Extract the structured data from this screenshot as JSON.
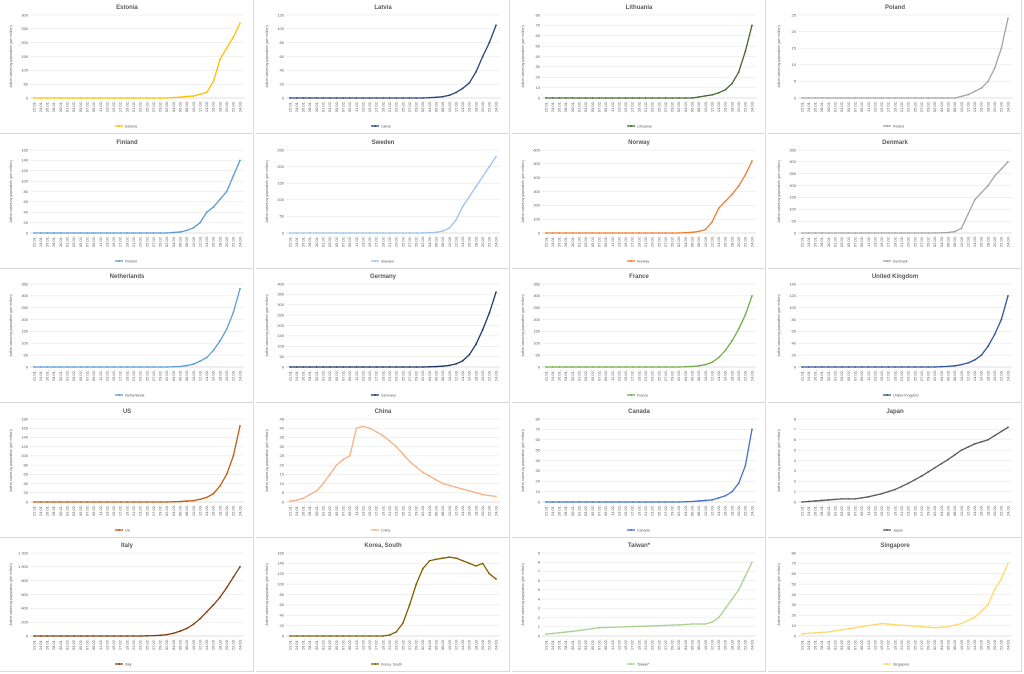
{
  "dates": [
    "22.01.",
    "24.01.",
    "26.01.",
    "28.01.",
    "30.01.",
    "01.02.",
    "03.02.",
    "05.02.",
    "07.02.",
    "09.02.",
    "11.02.",
    "13.02.",
    "15.02.",
    "17.02.",
    "19.02.",
    "21.02.",
    "23.02.",
    "25.02.",
    "27.02.",
    "29.02.",
    "02.03.",
    "04.03.",
    "06.03.",
    "08.03.",
    "10.03.",
    "12.03.",
    "14.03.",
    "16.03.",
    "18.03.",
    "20.03.",
    "22.03.",
    "24.03."
  ],
  "ylabel": "Active cases by population (per million)",
  "chart_data": [
    {
      "type": "line",
      "title": "Estonia",
      "series": [
        {
          "name": "Estonia",
          "color": "#FFC000",
          "x_index": [
            0,
            20,
            22,
            23,
            24,
            25,
            26,
            27,
            28,
            29,
            30,
            31
          ],
          "values": [
            0,
            0,
            3,
            6,
            7,
            14,
            20,
            60,
            140,
            180,
            220,
            270
          ]
        }
      ],
      "ylim": [
        0,
        300
      ],
      "yticks": [
        "0",
        "50",
        "100",
        "150",
        "200",
        "250",
        "300"
      ]
    },
    {
      "type": "line",
      "title": "Latvia",
      "series": [
        {
          "name": "Latvia",
          "color": "#264478",
          "x_index": [
            0,
            20,
            22,
            23,
            24,
            25,
            26,
            27,
            28,
            29,
            30,
            31
          ],
          "values": [
            0,
            0,
            1,
            2,
            4,
            8,
            14,
            22,
            38,
            60,
            80,
            105
          ]
        }
      ],
      "ylim": [
        0,
        120
      ],
      "yticks": [
        "0",
        "20",
        "40",
        "60",
        "80",
        "100",
        "120"
      ]
    },
    {
      "type": "line",
      "title": "Lithuania",
      "series": [
        {
          "name": "Lithuania",
          "color": "#43682B",
          "x_index": [
            0,
            22,
            23,
            24,
            25,
            26,
            27,
            28,
            29,
            30,
            31
          ],
          "values": [
            0,
            0,
            1,
            2,
            3,
            5,
            8,
            14,
            25,
            45,
            70
          ]
        }
      ],
      "ylim": [
        0,
        80
      ],
      "yticks": [
        "0",
        "10",
        "20",
        "30",
        "40",
        "50",
        "60",
        "70",
        "80"
      ]
    },
    {
      "type": "line",
      "title": "Poland",
      "series": [
        {
          "name": "Poland",
          "color": "#A5A5A5",
          "x_index": [
            0,
            23,
            24,
            25,
            26,
            27,
            28,
            29,
            30,
            31
          ],
          "values": [
            0,
            0,
            0.5,
            1,
            2,
            3,
            5,
            9,
            15,
            24
          ]
        }
      ],
      "ylim": [
        0,
        25
      ],
      "yticks": [
        "0",
        "5",
        "10",
        "15",
        "20",
        "25"
      ]
    },
    {
      "type": "line",
      "title": "Finland",
      "series": [
        {
          "name": "Finland",
          "color": "#5B9BD5",
          "x_index": [
            0,
            20,
            22,
            23,
            24,
            25,
            26,
            27,
            28,
            29,
            30,
            31
          ],
          "values": [
            0,
            0,
            2,
            5,
            10,
            20,
            40,
            50,
            65,
            80,
            110,
            140
          ]
        }
      ],
      "ylim": [
        0,
        160
      ],
      "yticks": [
        "0",
        "20",
        "40",
        "60",
        "80",
        "100",
        "120",
        "140",
        "160"
      ]
    },
    {
      "type": "line",
      "title": "Sweden",
      "series": [
        {
          "name": "Sweden",
          "color": "#9DC3E6",
          "x_index": [
            0,
            20,
            22,
            23,
            24,
            25,
            26,
            27,
            28,
            29,
            30,
            31
          ],
          "values": [
            0,
            0,
            2,
            6,
            15,
            40,
            80,
            110,
            140,
            170,
            200,
            230
          ]
        }
      ],
      "ylim": [
        0,
        250
      ],
      "yticks": [
        "0",
        "50",
        "100",
        "150",
        "200",
        "250"
      ]
    },
    {
      "type": "line",
      "title": "Norway",
      "series": [
        {
          "name": "Norway",
          "color": "#ED7D31",
          "x_index": [
            0,
            20,
            22,
            23,
            24,
            25,
            26,
            27,
            28,
            29,
            30,
            31
          ],
          "values": [
            0,
            0,
            5,
            12,
            25,
            80,
            180,
            230,
            280,
            340,
            420,
            520
          ]
        }
      ],
      "ylim": [
        0,
        600
      ],
      "yticks": [
        "0",
        "100",
        "200",
        "300",
        "400",
        "500",
        "600"
      ]
    },
    {
      "type": "line",
      "title": "Denmark",
      "series": [
        {
          "name": "Denmark",
          "color": "#A5A5A5",
          "x_index": [
            0,
            20,
            22,
            23,
            24,
            25,
            26,
            27,
            28,
            29,
            30,
            31
          ],
          "values": [
            0,
            0,
            2,
            6,
            20,
            80,
            140,
            170,
            200,
            240,
            270,
            300
          ]
        }
      ],
      "ylim": [
        0,
        350
      ],
      "yticks": [
        "0",
        "50",
        "100",
        "150",
        "200",
        "250",
        "300",
        "350"
      ]
    },
    {
      "type": "line",
      "title": "Netherlands",
      "series": [
        {
          "name": "Netherlands",
          "color": "#5B9BD5",
          "x_index": [
            0,
            20,
            22,
            23,
            24,
            25,
            26,
            27,
            28,
            29,
            30,
            31
          ],
          "values": [
            0,
            0,
            2,
            6,
            12,
            25,
            40,
            70,
            110,
            160,
            230,
            330
          ]
        }
      ],
      "ylim": [
        0,
        350
      ],
      "yticks": [
        "0",
        "50",
        "100",
        "150",
        "200",
        "250",
        "300",
        "350"
      ]
    },
    {
      "type": "line",
      "title": "Germany",
      "series": [
        {
          "name": "Germany",
          "color": "#203864",
          "x_index": [
            0,
            20,
            22,
            23,
            24,
            25,
            26,
            27,
            28,
            29,
            30,
            31
          ],
          "values": [
            0,
            0,
            2,
            4,
            8,
            15,
            30,
            60,
            110,
            180,
            260,
            360
          ]
        }
      ],
      "ylim": [
        0,
        400
      ],
      "yticks": [
        "0",
        "50",
        "100",
        "150",
        "200",
        "250",
        "300",
        "350",
        "400"
      ]
    },
    {
      "type": "line",
      "title": "France",
      "series": [
        {
          "name": "France",
          "color": "#70AD47",
          "x_index": [
            0,
            20,
            22,
            23,
            24,
            25,
            26,
            27,
            28,
            29,
            30,
            31
          ],
          "values": [
            0,
            0,
            2,
            5,
            10,
            20,
            40,
            70,
            110,
            160,
            220,
            300
          ]
        }
      ],
      "ylim": [
        0,
        350
      ],
      "yticks": [
        "0",
        "50",
        "100",
        "150",
        "200",
        "250",
        "300",
        "350"
      ]
    },
    {
      "type": "line",
      "title": "United Kingdom",
      "series": [
        {
          "name": "United Kingdom",
          "color": "#2F5597",
          "x_index": [
            0,
            20,
            22,
            23,
            24,
            25,
            26,
            27,
            28,
            29,
            30,
            31
          ],
          "values": [
            0,
            0,
            1,
            2,
            4,
            7,
            12,
            20,
            35,
            55,
            80,
            120
          ]
        }
      ],
      "ylim": [
        0,
        140
      ],
      "yticks": [
        "0",
        "20",
        "40",
        "60",
        "80",
        "100",
        "120",
        "140"
      ]
    },
    {
      "type": "line",
      "title": "US",
      "series": [
        {
          "name": "US",
          "color": "#C55A11",
          "x_index": [
            0,
            20,
            22,
            23,
            24,
            25,
            26,
            27,
            28,
            29,
            30,
            31
          ],
          "values": [
            0,
            0,
            1,
            2,
            3,
            6,
            10,
            18,
            35,
            60,
            100,
            165
          ]
        }
      ],
      "ylim": [
        0,
        180
      ],
      "yticks": [
        "0",
        "20",
        "40",
        "60",
        "80",
        "100",
        "120",
        "140",
        "160",
        "180"
      ]
    },
    {
      "type": "line",
      "title": "China",
      "series": [
        {
          "name": "China",
          "color": "#F4B183",
          "x_index": [
            0,
            1,
            2,
            3,
            4,
            5,
            6,
            7,
            8,
            9,
            10,
            11,
            12,
            13,
            14,
            15,
            16,
            17,
            18,
            19,
            20,
            21,
            22,
            23,
            24,
            25,
            26,
            27,
            28,
            29,
            30,
            31
          ],
          "values": [
            0.5,
            1,
            2,
            4,
            6,
            10,
            15,
            20,
            23,
            25,
            40,
            41,
            40,
            38,
            36,
            33,
            30,
            26,
            22,
            19,
            16,
            14,
            12,
            10,
            9,
            8,
            7,
            6,
            5,
            4,
            3.5,
            3
          ]
        }
      ],
      "ylim": [
        0,
        45
      ],
      "yticks": [
        "0",
        "5",
        "10",
        "15",
        "20",
        "25",
        "30",
        "35",
        "40",
        "45"
      ]
    },
    {
      "type": "line",
      "title": "Canada",
      "series": [
        {
          "name": "Canada",
          "color": "#4472C4",
          "x_index": [
            0,
            20,
            22,
            23,
            24,
            25,
            26,
            27,
            28,
            29,
            30,
            31
          ],
          "values": [
            0,
            0,
            0.5,
            1,
            1.5,
            2,
            4,
            6,
            10,
            18,
            35,
            70
          ]
        }
      ],
      "ylim": [
        0,
        80
      ],
      "yticks": [
        "0",
        "10",
        "20",
        "30",
        "40",
        "50",
        "60",
        "70",
        "80"
      ]
    },
    {
      "type": "line",
      "title": "Japan",
      "series": [
        {
          "name": "Japan",
          "color": "#595959",
          "x_index": [
            0,
            2,
            4,
            6,
            8,
            10,
            12,
            14,
            16,
            18,
            20,
            22,
            24,
            26,
            28,
            30,
            31
          ],
          "values": [
            0,
            0.1,
            0.2,
            0.3,
            0.3,
            0.5,
            0.8,
            1.2,
            1.8,
            2.5,
            3.3,
            4.1,
            5,
            5.6,
            6,
            6.8,
            7.2
          ]
        }
      ],
      "ylim": [
        0,
        8
      ],
      "yticks": [
        "0",
        "1",
        "2",
        "3",
        "4",
        "5",
        "6",
        "7",
        "8"
      ]
    },
    {
      "type": "line",
      "title": "Italy",
      "series": [
        {
          "name": "Italy",
          "color": "#843C0C",
          "x_index": [
            0,
            16,
            18,
            19,
            20,
            21,
            22,
            23,
            24,
            25,
            26,
            27,
            28,
            29,
            30,
            31
          ],
          "values": [
            0,
            0,
            5,
            10,
            20,
            40,
            70,
            110,
            170,
            250,
            350,
            450,
            560,
            700,
            850,
            1000
          ]
        }
      ],
      "ylim": [
        0,
        1200
      ],
      "yticks": [
        "0",
        "200",
        "400",
        "600",
        "800",
        "1 000",
        "1 200"
      ]
    },
    {
      "type": "line",
      "title": "Korea, South",
      "series": [
        {
          "name": "Korea, South",
          "color": "#7F6000",
          "x_index": [
            0,
            14,
            15,
            16,
            17,
            18,
            19,
            20,
            21,
            22,
            23,
            24,
            25,
            26,
            27,
            28,
            29,
            30,
            31
          ],
          "values": [
            0,
            0,
            2,
            8,
            25,
            60,
            100,
            130,
            145,
            148,
            150,
            152,
            150,
            145,
            140,
            135,
            140,
            120,
            110
          ]
        }
      ],
      "ylim": [
        0,
        160
      ],
      "yticks": [
        "0",
        "20",
        "40",
        "60",
        "80",
        "100",
        "120",
        "140",
        "160"
      ]
    },
    {
      "type": "line",
      "title": "Taiwan*",
      "series": [
        {
          "name": "Taiwan*",
          "color": "#A9D18E",
          "x_index": [
            0,
            4,
            8,
            12,
            16,
            20,
            22,
            24,
            25,
            26,
            27,
            28,
            29,
            30,
            31
          ],
          "values": [
            0.2,
            0.5,
            0.9,
            1,
            1.1,
            1.2,
            1.3,
            1.3,
            1.5,
            2,
            3,
            4,
            5,
            6.5,
            8
          ]
        }
      ],
      "ylim": [
        0,
        9
      ],
      "yticks": [
        "0",
        "1",
        "2",
        "3",
        "4",
        "5",
        "6",
        "7",
        "8",
        "9"
      ]
    },
    {
      "type": "line",
      "title": "Singapore",
      "series": [
        {
          "name": "Singapore",
          "color": "#FFD966",
          "x_index": [
            0,
            4,
            8,
            12,
            14,
            16,
            18,
            20,
            22,
            24,
            26,
            27,
            28,
            29,
            30,
            31
          ],
          "values": [
            2,
            4,
            8,
            12,
            11,
            10,
            9,
            8,
            9,
            12,
            18,
            24,
            30,
            45,
            55,
            70
          ]
        }
      ],
      "ylim": [
        0,
        80
      ],
      "yticks": [
        "0",
        "10",
        "20",
        "30",
        "40",
        "50",
        "60",
        "70",
        "80"
      ]
    }
  ]
}
